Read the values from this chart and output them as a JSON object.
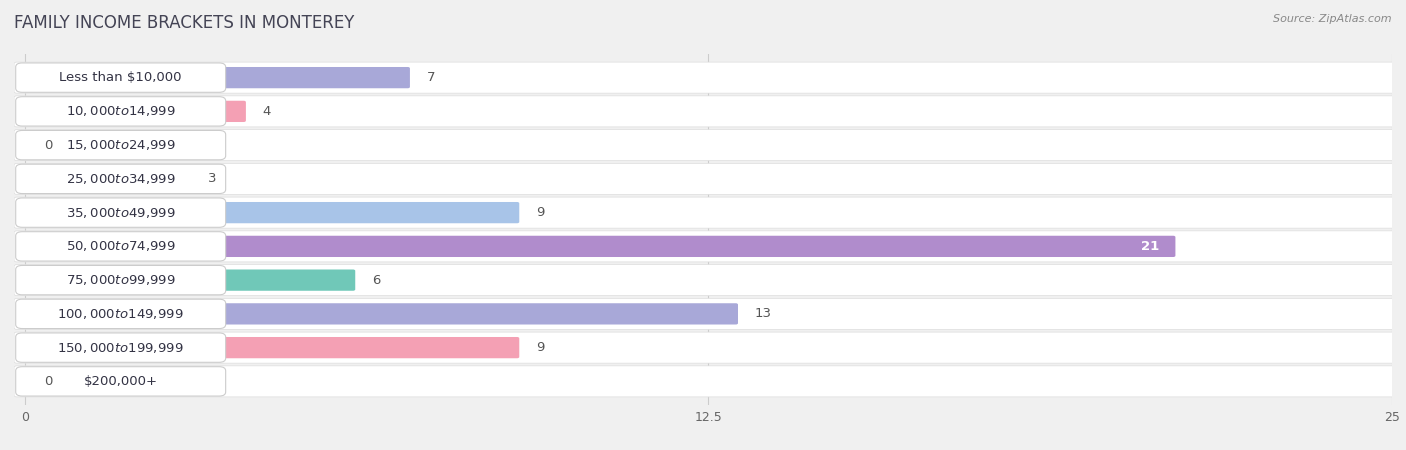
{
  "title": "FAMILY INCOME BRACKETS IN MONTEREY",
  "source": "Source: ZipAtlas.com",
  "categories": [
    "Less than $10,000",
    "$10,000 to $14,999",
    "$15,000 to $24,999",
    "$25,000 to $34,999",
    "$35,000 to $49,999",
    "$50,000 to $74,999",
    "$75,000 to $99,999",
    "$100,000 to $149,999",
    "$150,000 to $199,999",
    "$200,000+"
  ],
  "values": [
    7,
    4,
    0,
    3,
    9,
    21,
    6,
    13,
    9,
    0
  ],
  "bar_colors": [
    "#a8a8d8",
    "#f4a0b4",
    "#f5c88a",
    "#f4a898",
    "#a8c4e8",
    "#b08ccc",
    "#70c8b8",
    "#a8a8d8",
    "#f4a0b4",
    "#f5c88a"
  ],
  "label_pill_color": "#ffffff",
  "xlim": [
    0,
    25
  ],
  "xticks": [
    0,
    12.5,
    25
  ],
  "background_color": "#f0f0f0",
  "row_background_color": "#ffffff",
  "title_fontsize": 12,
  "label_fontsize": 9.5,
  "value_fontsize": 9.5,
  "value_inside_color": "#ffffff",
  "value_outside_color": "#555555",
  "label_text_color": "#333344",
  "title_color": "#444455"
}
